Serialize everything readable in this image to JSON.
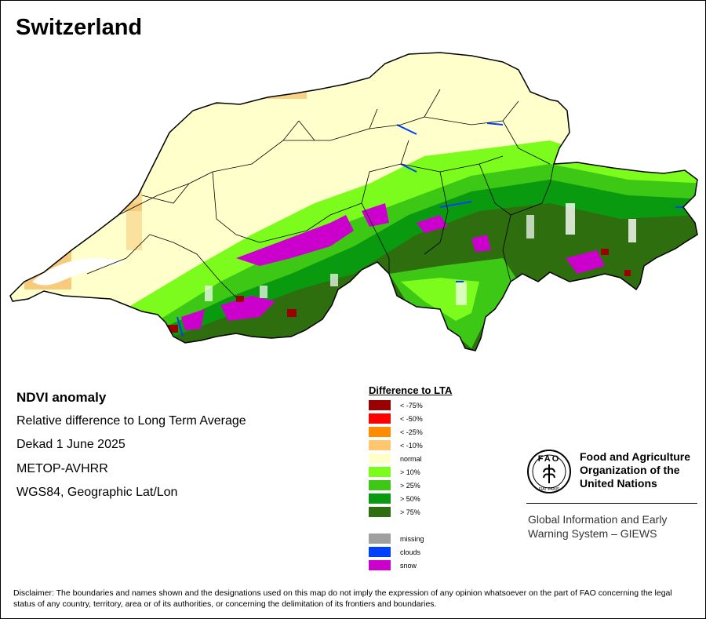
{
  "title": "Switzerland",
  "info": {
    "heading": "NDVI anomaly",
    "line1": "Relative difference to Long Term Average",
    "line2": "Dekad 1 June 2025",
    "line3": "METOP-AVHRR",
    "line4": "WGS84, Geographic Lat/Lon"
  },
  "legend": {
    "title": "Difference to LTA",
    "classes": [
      {
        "label": "< -75%",
        "color": "#990000"
      },
      {
        "label": "< -50%",
        "color": "#ff0000"
      },
      {
        "label": "< -25%",
        "color": "#ff8c00"
      },
      {
        "label": "< -10%",
        "color": "#ffc86e"
      },
      {
        "label": "normal",
        "color": "#ffffcc"
      },
      {
        "label": "> 10%",
        "color": "#7cfc1c"
      },
      {
        "label": "> 25%",
        "color": "#3cc814"
      },
      {
        "label": "> 50%",
        "color": "#0a9a10"
      },
      {
        "label": "> 75%",
        "color": "#2e6e0e"
      }
    ],
    "extra": [
      {
        "label": "missing",
        "color": "#a0a0a0"
      },
      {
        "label": "clouds",
        "color": "#0040ff"
      },
      {
        "label": "snow",
        "color": "#cc00cc"
      }
    ]
  },
  "fao": {
    "name_line1": "Food and Agriculture",
    "name_line2": "Organization of the",
    "name_line3": "United Nations",
    "logo_text": "FAO",
    "logo_motto": "FIAT PANIS",
    "giews_line1": "Global Information and Early",
    "giews_line2": "Warning System – GIEWS"
  },
  "disclaimer": "Disclaimer: The boundaries and names shown and the designations used on this map do not imply the expression of any opinion whatsoever on the part of FAO concerning the legal status of any country, territory, area or of its authorities, or concerning the delimitation of its frontiers and boundaries."
}
